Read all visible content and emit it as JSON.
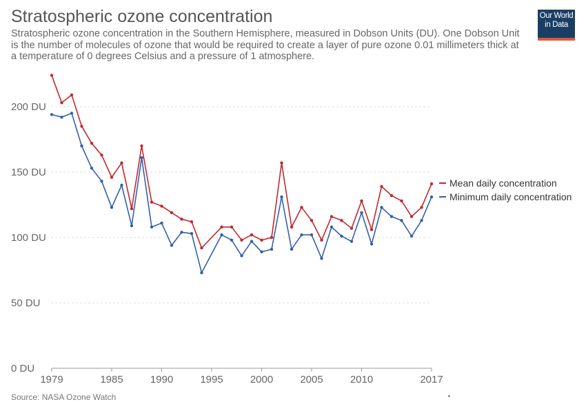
{
  "header": {
    "title": "Stratospheric ozone concentration",
    "subtitle": "Stratospheric ozone concentration in the Southern Hemisphere, measured in Dobson Units (DU). One Dobson Unit is the number of molecules of ozone that would be required to create a layer of pure ozone 0.01 millimeters thick at a temperature of 0 degrees Celsius and a pressure of 1 atmosphere."
  },
  "logo": {
    "line1": "Our World",
    "line2": "in Data",
    "bg_color": "#1a3e63",
    "accent_color": "#e0583b"
  },
  "footer": {
    "source": "Source: NASA Ozone Watch"
  },
  "chart_data": {
    "type": "line",
    "title": "Stratospheric ozone concentration",
    "xlim": [
      1979,
      2017
    ],
    "ylim": [
      0,
      200
    ],
    "y_ticks": [
      0,
      50,
      100,
      150,
      200
    ],
    "y_tick_labels": [
      "0 DU",
      "50 DU",
      "100 DU",
      "150 DU",
      "200 DU"
    ],
    "x_ticks": [
      1979,
      1985,
      1990,
      1995,
      2000,
      2005,
      2010,
      2017
    ],
    "x_tick_labels": [
      "1979",
      "1985",
      "1990",
      "1995",
      "2000",
      "2005",
      "2010",
      "2017"
    ],
    "grid": true,
    "legend_position": "right",
    "series": [
      {
        "name": "Mean daily concentration",
        "color": "#c0282f",
        "points": [
          [
            1979,
            224
          ],
          [
            1980,
            203
          ],
          [
            1981,
            209
          ],
          [
            1982,
            185
          ],
          [
            1983,
            172
          ],
          [
            1984,
            163
          ],
          [
            1985,
            146
          ],
          [
            1986,
            157
          ],
          [
            1987,
            122
          ],
          [
            1988,
            170
          ],
          [
            1989,
            127
          ],
          [
            1990,
            124
          ],
          [
            1991,
            119
          ],
          [
            1992,
            114
          ],
          [
            1993,
            112
          ],
          [
            1994,
            92
          ],
          [
            1996,
            108
          ],
          [
            1997,
            108
          ],
          [
            1998,
            98
          ],
          [
            1999,
            102
          ],
          [
            2000,
            98
          ],
          [
            2001,
            100
          ],
          [
            2002,
            157
          ],
          [
            2003,
            108
          ],
          [
            2004,
            123
          ],
          [
            2005,
            113
          ],
          [
            2006,
            98
          ],
          [
            2007,
            116
          ],
          [
            2008,
            113
          ],
          [
            2009,
            107
          ],
          [
            2010,
            128
          ],
          [
            2011,
            106
          ],
          [
            2012,
            139
          ],
          [
            2013,
            132
          ],
          [
            2014,
            128
          ],
          [
            2015,
            116
          ],
          [
            2016,
            123
          ],
          [
            2017,
            141
          ]
        ]
      },
      {
        "name": "Minimum daily concentration",
        "color": "#3360a9",
        "points": [
          [
            1979,
            194
          ],
          [
            1980,
            192
          ],
          [
            1981,
            195
          ],
          [
            1982,
            170
          ],
          [
            1983,
            153
          ],
          [
            1984,
            143
          ],
          [
            1985,
            123
          ],
          [
            1986,
            140
          ],
          [
            1987,
            109
          ],
          [
            1988,
            161
          ],
          [
            1989,
            108
          ],
          [
            1990,
            111
          ],
          [
            1991,
            94
          ],
          [
            1992,
            104
          ],
          [
            1993,
            103
          ],
          [
            1994,
            73
          ],
          [
            1996,
            102
          ],
          [
            1997,
            98
          ],
          [
            1998,
            86
          ],
          [
            1999,
            97
          ],
          [
            2000,
            89
          ],
          [
            2001,
            91
          ],
          [
            2002,
            131
          ],
          [
            2003,
            91
          ],
          [
            2004,
            102
          ],
          [
            2005,
            102
          ],
          [
            2006,
            84
          ],
          [
            2007,
            108
          ],
          [
            2008,
            101
          ],
          [
            2009,
            97
          ],
          [
            2010,
            119
          ],
          [
            2011,
            95
          ],
          [
            2012,
            123
          ],
          [
            2013,
            116
          ],
          [
            2014,
            113
          ],
          [
            2015,
            101
          ],
          [
            2016,
            113
          ],
          [
            2017,
            131
          ]
        ]
      }
    ]
  }
}
